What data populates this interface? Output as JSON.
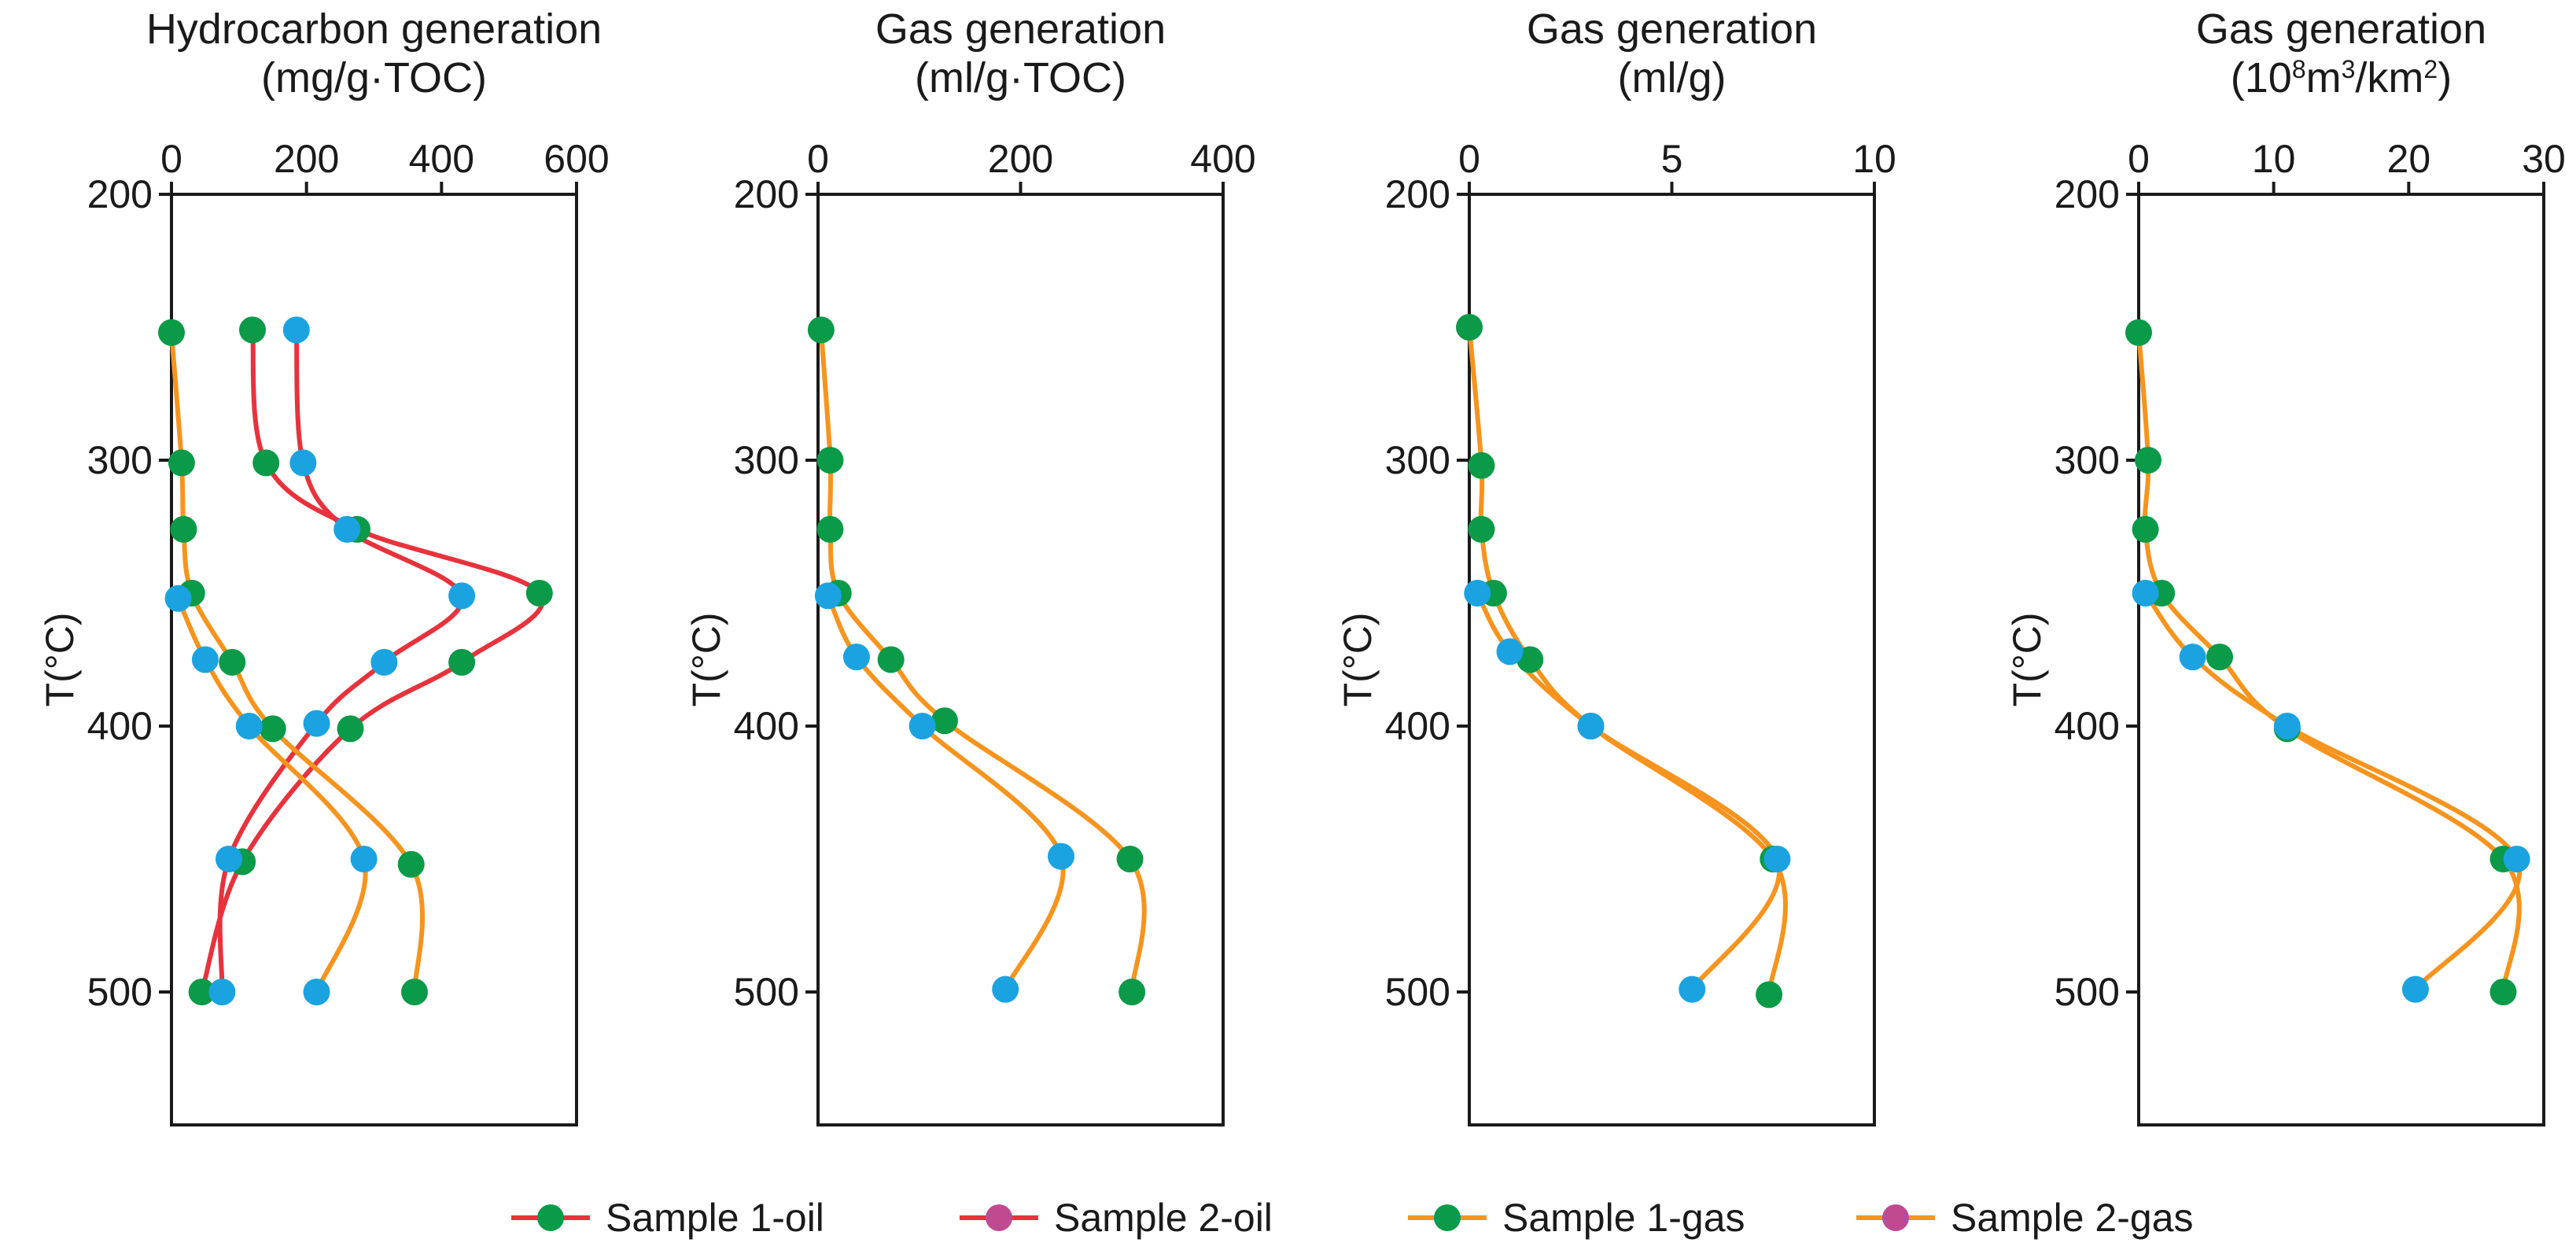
{
  "colors": {
    "oil_line": "#e8323c",
    "gas_line": "#f7941d",
    "sample1_marker": "#0a9a48",
    "sample2_marker": "#1aa3e0",
    "legend_sample2_marker": "#c04a90",
    "axis": "#1a1a1a"
  },
  "legend": [
    {
      "label": "Sample 1-oil",
      "line": "oil",
      "marker": "sample1"
    },
    {
      "label": "Sample 2-oil",
      "line": "oil",
      "marker": "legend_sample2"
    },
    {
      "label": "Sample 1-gas",
      "line": "gas",
      "marker": "sample1"
    },
    {
      "label": "Sample 2-gas",
      "line": "gas",
      "marker": "legend_sample2"
    }
  ],
  "chart_data": [
    {
      "type": "line",
      "title_lines": [
        "Hydrocarbon generation",
        "(mg/g·TOC)"
      ],
      "ylabel": "T(°C)",
      "xlim": [
        0,
        600
      ],
      "xticks": [
        0,
        200,
        400,
        600
      ],
      "ylim": [
        200,
        550
      ],
      "yticks": [
        200,
        300,
        400,
        500
      ],
      "series": [
        {
          "name": "Sample 1-oil",
          "kind": "oil",
          "sample": "sample1",
          "points": [
            [
              120,
              251
            ],
            [
              140,
              301
            ],
            [
              275,
              326
            ],
            [
              545,
              350
            ],
            [
              430,
              376
            ],
            [
              265,
              401
            ],
            [
              105,
              451
            ],
            [
              45,
              500
            ]
          ]
        },
        {
          "name": "Sample 2-oil",
          "kind": "oil",
          "sample": "sample2",
          "points": [
            [
              185,
              251
            ],
            [
              195,
              301
            ],
            [
              260,
              326
            ],
            [
              430,
              351
            ],
            [
              315,
              376
            ],
            [
              215,
              399
            ],
            [
              85,
              450
            ],
            [
              75,
              500
            ]
          ]
        },
        {
          "name": "Sample 1-gas",
          "kind": "gas",
          "sample": "sample1",
          "points": [
            [
              0,
              252
            ],
            [
              15,
              301
            ],
            [
              18,
              326
            ],
            [
              30,
              350
            ],
            [
              90,
              376
            ],
            [
              150,
              401
            ],
            [
              355,
              452
            ],
            [
              360,
              500
            ]
          ]
        },
        {
          "name": "Sample 2-gas",
          "kind": "gas",
          "sample": "sample2",
          "points": [
            [
              10,
              352
            ],
            [
              50,
              375
            ],
            [
              115,
              400
            ],
            [
              285,
              450
            ],
            [
              215,
              500
            ]
          ]
        }
      ]
    },
    {
      "type": "line",
      "title_lines": [
        "Gas generation",
        "(ml/g·TOC)"
      ],
      "ylabel": "T(°C)",
      "xlim": [
        0,
        400
      ],
      "xticks": [
        0,
        200,
        400
      ],
      "ylim": [
        200,
        550
      ],
      "yticks": [
        200,
        300,
        400,
        500
      ],
      "series": [
        {
          "name": "Sample 1-gas",
          "kind": "gas",
          "sample": "sample1",
          "points": [
            [
              3,
              251
            ],
            [
              12,
              300
            ],
            [
              12,
              326
            ],
            [
              20,
              350
            ],
            [
              72,
              375
            ],
            [
              125,
              398
            ],
            [
              308,
              450
            ],
            [
              310,
              500
            ]
          ]
        },
        {
          "name": "Sample 2-gas",
          "kind": "gas",
          "sample": "sample2",
          "points": [
            [
              10,
              351
            ],
            [
              38,
              374
            ],
            [
              103,
              400
            ],
            [
              240,
              449
            ],
            [
              185,
              499
            ]
          ]
        }
      ]
    },
    {
      "type": "line",
      "title_lines": [
        "Gas generation",
        "(ml/g)"
      ],
      "ylabel": "T(°C)",
      "xlim": [
        0,
        10
      ],
      "xticks": [
        0,
        5,
        10
      ],
      "ylim": [
        200,
        550
      ],
      "yticks": [
        200,
        300,
        400,
        500
      ],
      "series": [
        {
          "name": "Sample 1-gas",
          "kind": "gas",
          "sample": "sample1",
          "points": [
            [
              0.0,
              250
            ],
            [
              0.3,
              302
            ],
            [
              0.3,
              326
            ],
            [
              0.6,
              350
            ],
            [
              1.5,
              375
            ],
            [
              3.0,
              400
            ],
            [
              7.5,
              450
            ],
            [
              7.4,
              501
            ]
          ]
        },
        {
          "name": "Sample 2-gas",
          "kind": "gas",
          "sample": "sample2",
          "points": [
            [
              0.2,
              350
            ],
            [
              1.0,
              372
            ],
            [
              3.0,
              400
            ],
            [
              7.6,
              450
            ],
            [
              5.5,
              499
            ]
          ]
        }
      ]
    },
    {
      "type": "line",
      "title_lines": [
        "Gas generation",
        "(10^8m^3/km^2)"
      ],
      "ylabel": "T(°C)",
      "xlim": [
        0,
        30
      ],
      "xticks": [
        0,
        10,
        20,
        30
      ],
      "ylim": [
        200,
        550
      ],
      "yticks": [
        200,
        300,
        400,
        500
      ],
      "series": [
        {
          "name": "Sample 1-gas",
          "kind": "gas",
          "sample": "sample1",
          "points": [
            [
              0.0,
              252
            ],
            [
              0.7,
              300
            ],
            [
              0.5,
              326
            ],
            [
              1.7,
              350
            ],
            [
              6.0,
              374
            ],
            [
              11.0,
              401
            ],
            [
              27.0,
              450
            ],
            [
              27.0,
              500
            ]
          ]
        },
        {
          "name": "Sample 2-gas",
          "kind": "gas",
          "sample": "sample2",
          "points": [
            [
              0.5,
              350
            ],
            [
              4.0,
              374
            ],
            [
              11.0,
              400
            ],
            [
              28.0,
              450
            ],
            [
              20.5,
              499
            ]
          ]
        }
      ]
    }
  ]
}
